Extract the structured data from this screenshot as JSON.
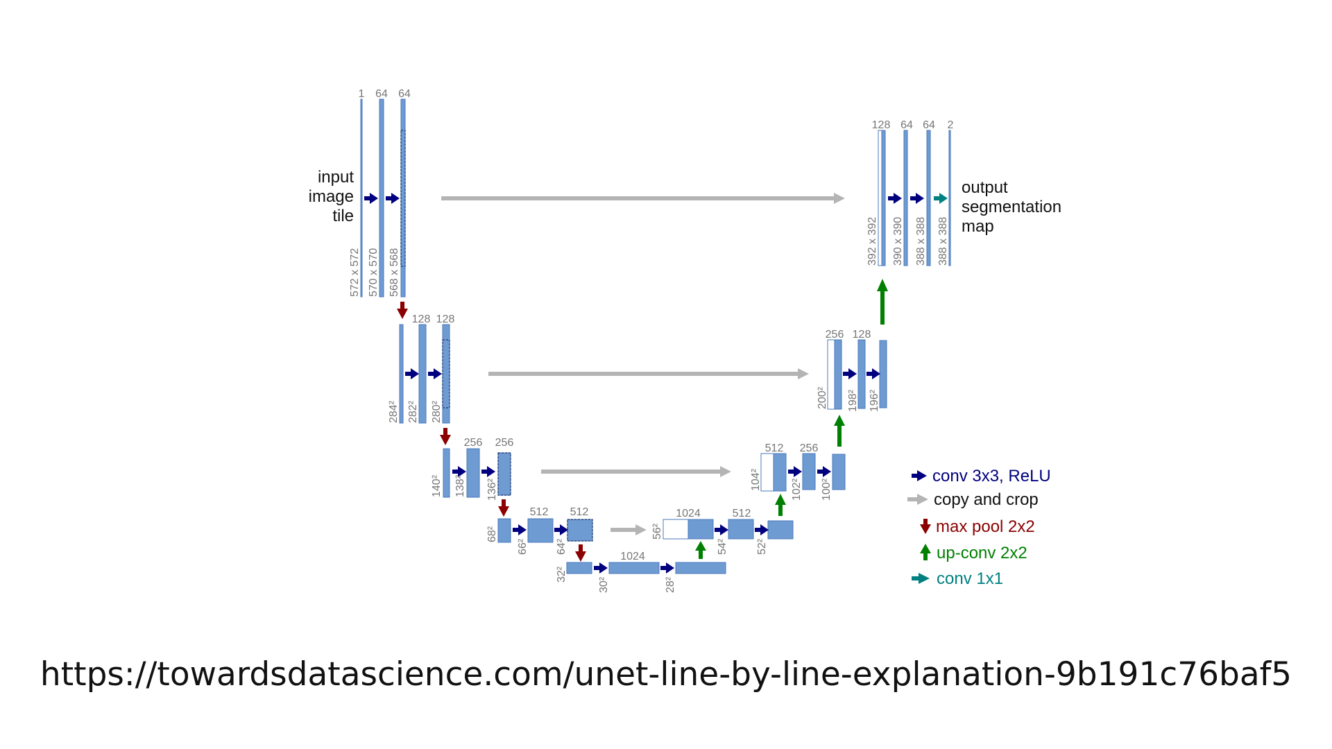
{
  "labels": {
    "input": [
      "input",
      "image",
      "tile"
    ],
    "output": [
      "output",
      "segmentation",
      "map"
    ]
  },
  "channels": {
    "enc1": [
      "1",
      "64",
      "64"
    ],
    "enc2": [
      "128",
      "128"
    ],
    "enc3": [
      "256",
      "256"
    ],
    "enc4": [
      "512",
      "512"
    ],
    "bottom": [
      "1024"
    ],
    "dec4": [
      "1024",
      "512"
    ],
    "dec3": [
      "512",
      "256"
    ],
    "dec2": [
      "256",
      "128"
    ],
    "dec1": [
      "128",
      "64",
      "64",
      "2"
    ]
  },
  "sizes": {
    "enc1": [
      "572 x 572",
      "570 x 570",
      "568 x 568"
    ],
    "enc2": [
      "284²",
      "282²",
      "280²"
    ],
    "enc3": [
      "140²",
      "138²",
      "136²"
    ],
    "enc4": [
      "68²",
      "66²",
      "64²"
    ],
    "bottom": [
      "32²",
      "30²",
      "28²"
    ],
    "dec4": [
      "56²",
      "54²",
      "52²"
    ],
    "dec3": [
      "104²",
      "102²",
      "100²"
    ],
    "dec2": [
      "200²",
      "198²",
      "196²"
    ],
    "dec1": [
      "392 x 392",
      "390 x 390",
      "388 x 388",
      "388 x 388"
    ]
  },
  "legend": [
    {
      "label": "conv 3x3, ReLU",
      "color": "#00007f",
      "kind": "right"
    },
    {
      "label": "copy and crop",
      "color": "#111111",
      "arrow_color": "#b4b4b4",
      "kind": "right"
    },
    {
      "label": "max pool 2x2",
      "color": "#8b0000",
      "kind": "down"
    },
    {
      "label": "up-conv 2x2",
      "color": "#008000",
      "kind": "up"
    },
    {
      "label": "conv 1x1",
      "color": "#008080",
      "kind": "right"
    }
  ],
  "colors": {
    "feature_map": "#6f9bd3",
    "feature_map_border": "#4a79b8",
    "conv": "#00007f",
    "copy": "#b4b4b4",
    "pool": "#8b0000",
    "upconv": "#008000",
    "conv1x1": "#008080"
  },
  "source_url": "https://towardsdatascience.com/unet-line-by-line-explanation-9b191c76baf5"
}
